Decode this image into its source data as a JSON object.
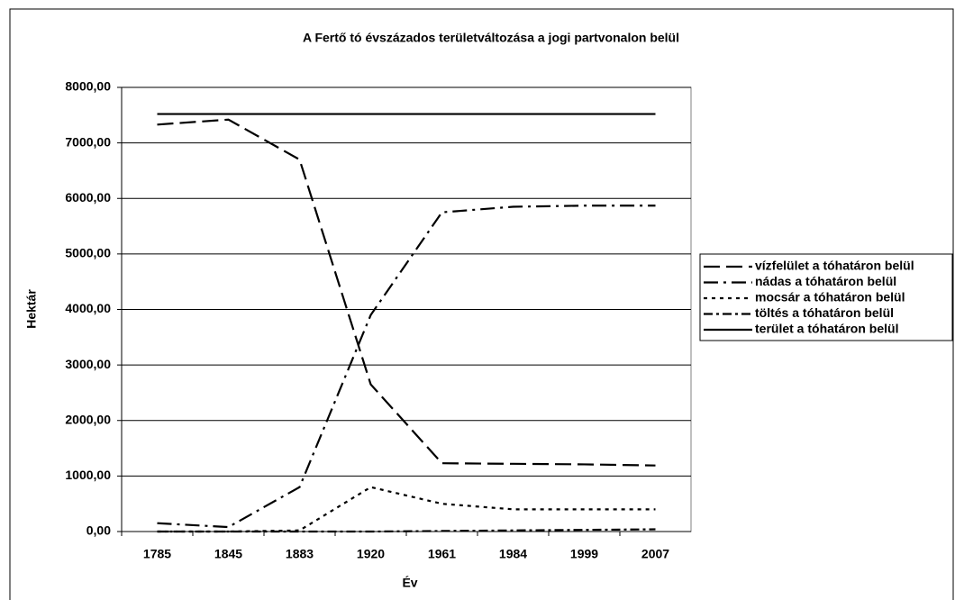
{
  "chart_data": {
    "type": "line",
    "title": "A Fertő tó évszázados területváltozása a jogi partvonalon belül",
    "xlabel": "Év",
    "ylabel": "Hektár",
    "categories": [
      "1785",
      "1845",
      "1883",
      "1920",
      "1961",
      "1984",
      "1999",
      "2007"
    ],
    "series": [
      {
        "name": "vízfelület a tóhatáron belül",
        "color": "#000000",
        "dash": "18,7",
        "values": [
          7330,
          7420,
          6700,
          2650,
          1230,
          1220,
          1210,
          1190
        ]
      },
      {
        "name": "nádas a tóhatáron belül",
        "color": "#000000",
        "dash": "16,6,3,6",
        "values": [
          150,
          80,
          800,
          3900,
          5750,
          5850,
          5870,
          5870
        ]
      },
      {
        "name": "mocsár a tóhatáron belül",
        "color": "#000000",
        "dash": "4,5",
        "values": [
          0,
          0,
          20,
          800,
          500,
          400,
          400,
          400
        ]
      },
      {
        "name": "töltés a tóhatáron belül",
        "color": "#000000",
        "dash": "10,4,3,4",
        "values": [
          0,
          0,
          0,
          0,
          10,
          20,
          30,
          40
        ]
      },
      {
        "name": "terület a tóhatáron belül",
        "color": "#000000",
        "dash": "none",
        "values": [
          7520,
          7520,
          7520,
          7520,
          7520,
          7520,
          7520,
          7520
        ]
      }
    ],
    "ylim": [
      0,
      8000
    ],
    "yticks": [
      {
        "value": 0,
        "label": "0,00"
      },
      {
        "value": 1000,
        "label": "1000,00"
      },
      {
        "value": 2000,
        "label": "2000,00"
      },
      {
        "value": 3000,
        "label": "3000,00"
      },
      {
        "value": 4000,
        "label": "4000,00"
      },
      {
        "value": 5000,
        "label": "5000,00"
      },
      {
        "value": 6000,
        "label": "6000,00"
      },
      {
        "value": 7000,
        "label": "7000,00"
      },
      {
        "value": 8000,
        "label": "8000,00"
      }
    ],
    "grid": true,
    "legend": "right"
  }
}
